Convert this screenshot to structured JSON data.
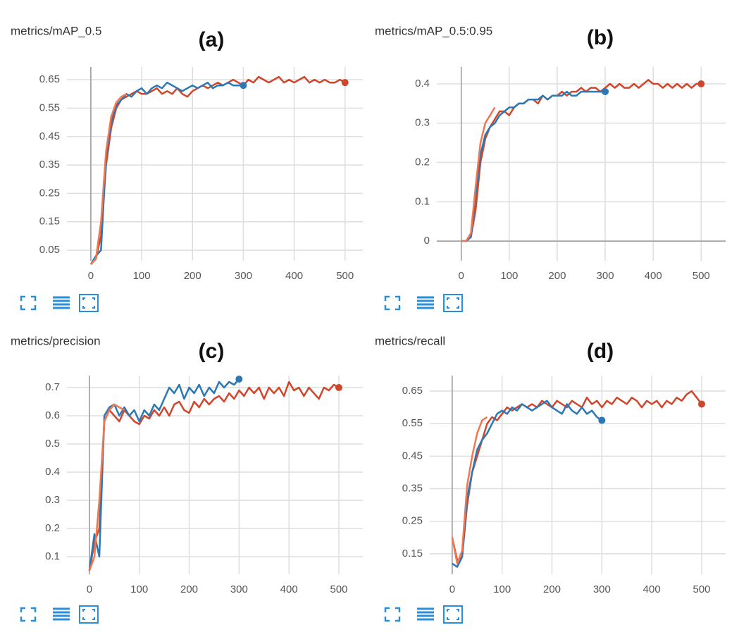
{
  "chart_data": [
    {
      "type": "line",
      "title": "metrics/mAP_0.5",
      "label": "(a)",
      "grid": true,
      "xlim": [
        -47,
        535
      ],
      "xticks": [
        0,
        100,
        200,
        300,
        400,
        500
      ],
      "ylim": [
        0.013,
        0.695
      ],
      "yticks": [
        0.05,
        0.15,
        0.25,
        0.35,
        0.45,
        0.55,
        0.65
      ],
      "series": [
        {
          "color": "#d0462b",
          "x": [
            0,
            10,
            20,
            30,
            40,
            50,
            60,
            70,
            80,
            90,
            100,
            110,
            120,
            130,
            140,
            150,
            160,
            170,
            180,
            190,
            200,
            210,
            220,
            230,
            240,
            250,
            260,
            270,
            280,
            290,
            300,
            310,
            320,
            330,
            340,
            350,
            360,
            370,
            380,
            390,
            400,
            410,
            420,
            430,
            440,
            450,
            460,
            470,
            480,
            490,
            500
          ],
          "values": [
            0,
            0.02,
            0.1,
            0.35,
            0.48,
            0.55,
            0.58,
            0.59,
            0.6,
            0.61,
            0.6,
            0.6,
            0.61,
            0.62,
            0.6,
            0.61,
            0.6,
            0.62,
            0.6,
            0.59,
            0.61,
            0.62,
            0.63,
            0.62,
            0.63,
            0.64,
            0.63,
            0.64,
            0.65,
            0.64,
            0.63,
            0.65,
            0.64,
            0.66,
            0.65,
            0.64,
            0.65,
            0.66,
            0.64,
            0.65,
            0.64,
            0.65,
            0.66,
            0.64,
            0.65,
            0.64,
            0.65,
            0.64,
            0.64,
            0.65,
            0.64
          ]
        },
        {
          "color": "#2b78b5",
          "x": [
            0,
            10,
            20,
            30,
            40,
            50,
            60,
            70,
            80,
            90,
            100,
            110,
            120,
            130,
            140,
            150,
            160,
            170,
            180,
            190,
            200,
            210,
            220,
            230,
            240,
            250,
            260,
            270,
            280,
            290,
            300
          ],
          "values": [
            0,
            0.03,
            0.05,
            0.38,
            0.5,
            0.56,
            0.58,
            0.6,
            0.59,
            0.61,
            0.62,
            0.6,
            0.62,
            0.63,
            0.62,
            0.64,
            0.63,
            0.62,
            0.61,
            0.62,
            0.63,
            0.62,
            0.63,
            0.64,
            0.62,
            0.63,
            0.63,
            0.64,
            0.63,
            0.63,
            0.63
          ]
        },
        {
          "color": "#f2764e",
          "x": [
            0,
            10,
            20,
            30,
            40,
            50,
            60,
            70
          ],
          "values": [
            0,
            0.02,
            0.15,
            0.4,
            0.52,
            0.57,
            0.59,
            0.6
          ]
        }
      ]
    },
    {
      "type": "line",
      "title": "metrics/mAP_0.5:0.95",
      "label": "(b)",
      "grid": true,
      "xlim": [
        -51,
        551
      ],
      "xticks": [
        0,
        100,
        200,
        300,
        400,
        500
      ],
      "ylim": [
        -0.05,
        0.443
      ],
      "yticks": [
        0,
        0.1,
        0.2,
        0.3,
        0.4
      ],
      "series": [
        {
          "color": "#d0462b",
          "x": [
            0,
            10,
            20,
            30,
            40,
            50,
            60,
            70,
            80,
            90,
            100,
            110,
            120,
            130,
            140,
            150,
            160,
            170,
            180,
            190,
            200,
            210,
            220,
            230,
            240,
            250,
            260,
            270,
            280,
            290,
            300,
            310,
            320,
            330,
            340,
            350,
            360,
            370,
            380,
            390,
            400,
            410,
            420,
            430,
            440,
            450,
            460,
            470,
            480,
            490,
            500
          ],
          "values": [
            0,
            0,
            0.01,
            0.08,
            0.2,
            0.26,
            0.29,
            0.31,
            0.33,
            0.33,
            0.32,
            0.34,
            0.35,
            0.35,
            0.36,
            0.36,
            0.35,
            0.37,
            0.36,
            0.37,
            0.37,
            0.38,
            0.37,
            0.38,
            0.38,
            0.39,
            0.38,
            0.39,
            0.39,
            0.38,
            0.39,
            0.4,
            0.39,
            0.4,
            0.39,
            0.39,
            0.4,
            0.39,
            0.4,
            0.41,
            0.4,
            0.4,
            0.39,
            0.4,
            0.39,
            0.4,
            0.39,
            0.4,
            0.39,
            0.4,
            0.4
          ]
        },
        {
          "color": "#2b78b5",
          "x": [
            0,
            10,
            20,
            30,
            40,
            50,
            60,
            70,
            80,
            90,
            100,
            110,
            120,
            130,
            140,
            150,
            160,
            170,
            180,
            190,
            200,
            210,
            220,
            230,
            240,
            250,
            260,
            270,
            280,
            290,
            300
          ],
          "values": [
            0,
            0,
            0.01,
            0.12,
            0.22,
            0.27,
            0.29,
            0.3,
            0.32,
            0.33,
            0.34,
            0.34,
            0.35,
            0.35,
            0.36,
            0.36,
            0.36,
            0.37,
            0.36,
            0.37,
            0.37,
            0.37,
            0.38,
            0.37,
            0.37,
            0.38,
            0.38,
            0.38,
            0.38,
            0.38,
            0.38
          ]
        },
        {
          "color": "#f2764e",
          "x": [
            0,
            10,
            20,
            30,
            40,
            50,
            60,
            70
          ],
          "values": [
            0,
            0,
            0.02,
            0.14,
            0.25,
            0.3,
            0.32,
            0.34
          ]
        }
      ]
    },
    {
      "type": "line",
      "title": "metrics/precision",
      "label": "(c)",
      "grid": true,
      "xlim": [
        -45,
        548
      ],
      "xticks": [
        0,
        100,
        200,
        300,
        400,
        500
      ],
      "ylim": [
        0.0375,
        0.7425
      ],
      "yticks": [
        0.1,
        0.2,
        0.3,
        0.4,
        0.5,
        0.6,
        0.7
      ],
      "series": [
        {
          "color": "#d0462b",
          "x": [
            0,
            10,
            20,
            30,
            40,
            50,
            60,
            70,
            80,
            90,
            100,
            110,
            120,
            130,
            140,
            150,
            160,
            170,
            180,
            190,
            200,
            210,
            220,
            230,
            240,
            250,
            260,
            270,
            280,
            290,
            300,
            310,
            320,
            330,
            340,
            350,
            360,
            370,
            380,
            390,
            400,
            410,
            420,
            430,
            440,
            450,
            460,
            470,
            480,
            490,
            500
          ],
          "values": [
            0.05,
            0.15,
            0.2,
            0.58,
            0.62,
            0.6,
            0.58,
            0.62,
            0.6,
            0.58,
            0.57,
            0.6,
            0.59,
            0.62,
            0.6,
            0.63,
            0.6,
            0.64,
            0.65,
            0.62,
            0.61,
            0.65,
            0.63,
            0.66,
            0.64,
            0.66,
            0.67,
            0.65,
            0.68,
            0.66,
            0.69,
            0.67,
            0.7,
            0.68,
            0.7,
            0.66,
            0.7,
            0.68,
            0.7,
            0.67,
            0.72,
            0.69,
            0.7,
            0.67,
            0.7,
            0.68,
            0.66,
            0.7,
            0.69,
            0.71,
            0.7
          ]
        },
        {
          "color": "#2b78b5",
          "x": [
            0,
            10,
            20,
            30,
            40,
            50,
            60,
            70,
            80,
            90,
            100,
            110,
            120,
            130,
            140,
            150,
            160,
            170,
            180,
            190,
            200,
            210,
            220,
            230,
            240,
            250,
            260,
            270,
            280,
            290,
            300
          ],
          "values": [
            0.05,
            0.18,
            0.1,
            0.6,
            0.63,
            0.64,
            0.6,
            0.63,
            0.6,
            0.62,
            0.58,
            0.62,
            0.6,
            0.64,
            0.62,
            0.66,
            0.7,
            0.68,
            0.71,
            0.66,
            0.7,
            0.68,
            0.71,
            0.67,
            0.7,
            0.68,
            0.72,
            0.7,
            0.72,
            0.71,
            0.73
          ]
        },
        {
          "color": "#f2764e",
          "x": [
            0,
            10,
            20,
            30,
            40,
            50,
            60,
            70
          ],
          "values": [
            0.05,
            0.1,
            0.3,
            0.58,
            0.62,
            0.64,
            0.63,
            0.62
          ]
        }
      ]
    },
    {
      "type": "line",
      "title": "metrics/recall",
      "label": "(d)",
      "grid": true,
      "xlim": [
        -45,
        548
      ],
      "xticks": [
        0,
        100,
        200,
        300,
        400,
        500
      ],
      "ylim": [
        0.087,
        0.6976
      ],
      "yticks": [
        0.15,
        0.25,
        0.35,
        0.45,
        0.55,
        0.65
      ],
      "series": [
        {
          "color": "#d0462b",
          "x": [
            0,
            10,
            20,
            30,
            40,
            50,
            60,
            70,
            80,
            90,
            100,
            110,
            120,
            130,
            140,
            150,
            160,
            170,
            180,
            190,
            200,
            210,
            220,
            230,
            240,
            250,
            260,
            270,
            280,
            290,
            300,
            310,
            320,
            330,
            340,
            350,
            360,
            370,
            380,
            390,
            400,
            410,
            420,
            430,
            440,
            450,
            460,
            470,
            480,
            490,
            500
          ],
          "values": [
            0.2,
            0.13,
            0.14,
            0.3,
            0.4,
            0.45,
            0.5,
            0.55,
            0.57,
            0.56,
            0.58,
            0.6,
            0.59,
            0.6,
            0.61,
            0.6,
            0.61,
            0.6,
            0.62,
            0.61,
            0.6,
            0.62,
            0.61,
            0.6,
            0.62,
            0.61,
            0.6,
            0.63,
            0.61,
            0.62,
            0.6,
            0.62,
            0.61,
            0.63,
            0.62,
            0.61,
            0.63,
            0.62,
            0.6,
            0.62,
            0.61,
            0.62,
            0.6,
            0.62,
            0.61,
            0.63,
            0.62,
            0.64,
            0.65,
            0.63,
            0.61
          ]
        },
        {
          "color": "#2b78b5",
          "x": [
            0,
            10,
            20,
            30,
            40,
            50,
            60,
            70,
            80,
            90,
            100,
            110,
            120,
            130,
            140,
            150,
            160,
            170,
            180,
            190,
            200,
            210,
            220,
            230,
            240,
            250,
            260,
            270,
            280,
            290,
            300
          ],
          "values": [
            0.12,
            0.11,
            0.14,
            0.32,
            0.4,
            0.47,
            0.5,
            0.52,
            0.55,
            0.58,
            0.59,
            0.58,
            0.6,
            0.59,
            0.61,
            0.6,
            0.59,
            0.6,
            0.61,
            0.62,
            0.6,
            0.59,
            0.58,
            0.61,
            0.59,
            0.58,
            0.6,
            0.58,
            0.59,
            0.57,
            0.56
          ]
        },
        {
          "color": "#f2764e",
          "x": [
            0,
            10,
            20,
            30,
            40,
            50,
            60,
            70
          ],
          "values": [
            0.2,
            0.12,
            0.16,
            0.36,
            0.45,
            0.52,
            0.56,
            0.57
          ]
        }
      ]
    }
  ]
}
